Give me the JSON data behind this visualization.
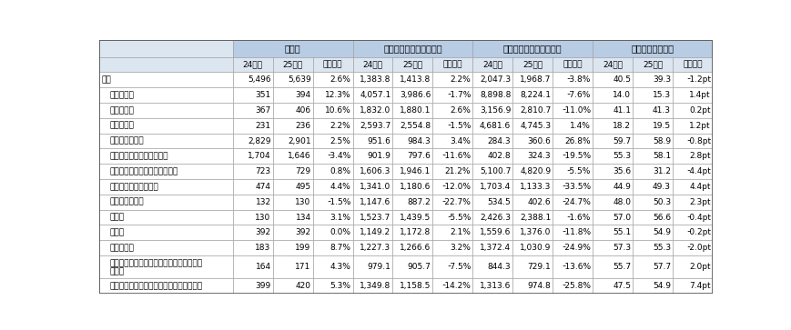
{
  "header_groups": [
    {
      "label": "企業数",
      "cols": 3
    },
    {
      "label": "労働生産性（万円／人）",
      "cols": 3
    },
    {
      "label": "労働装備率（万円／人）",
      "cols": 3
    },
    {
      "label": "労働分配率（％）",
      "cols": 3
    }
  ],
  "sub_headers": [
    "24年度",
    "25年度",
    "前年度比",
    "24年度",
    "25年度",
    "前年度比",
    "24年度",
    "25年度",
    "前年度比",
    "24年度",
    "25年度",
    "前年度差"
  ],
  "rows": [
    {
      "label": "全体",
      "indent": false,
      "multiline": false,
      "values": [
        "5,496",
        "5,639",
        "2.6%",
        "1,383.8",
        "1,413.8",
        "2.2%",
        "2,047.3",
        "1,968.7",
        "╶3.8%",
        "40.5",
        "39.3",
        "╶1.2pt"
      ]
    },
    {
      "label": "電気通信業",
      "indent": true,
      "multiline": false,
      "values": [
        "351",
        "394",
        "12.3%",
        "4,057.1",
        "3,986.6",
        "╶1.7%",
        "8,898.8",
        "8,224.1",
        "╶7.6%",
        "14.0",
        "15.3",
        "1.4pt"
      ]
    },
    {
      "label": "民間放送業",
      "indent": true,
      "multiline": false,
      "values": [
        "367",
        "406",
        "10.6%",
        "1,832.0",
        "1,880.1",
        "2.6%",
        "3,156.9",
        "2,810.7",
        "╶11.0%",
        "41.1",
        "41.3",
        "0.2pt"
      ]
    },
    {
      "label": "有線放送業",
      "indent": true,
      "multiline": false,
      "values": [
        "231",
        "236",
        "2.2%",
        "2,593.7",
        "2,554.8",
        "╶1.5%",
        "4,681.6",
        "4,745.3",
        "1.4%",
        "18.2",
        "19.5",
        "1.2pt"
      ]
    },
    {
      "label": "ソフトウェア業",
      "indent": true,
      "multiline": false,
      "values": [
        "2,829",
        "2,901",
        "2.5%",
        "951.6",
        "984.3",
        "3.4%",
        "284.3",
        "360.6",
        "26.8%",
        "59.7",
        "58.9",
        "╶0.8pt"
      ]
    },
    {
      "label": "情報処理・提供サービス業",
      "indent": true,
      "multiline": false,
      "values": [
        "1,704",
        "1,646",
        "╶3.4%",
        "901.9",
        "797.6",
        "╶11.6%",
        "402.8",
        "324.3",
        "╶19.5%",
        "55.3",
        "58.1",
        "2.8pt"
      ]
    },
    {
      "label": "インターネット附隨サービス業",
      "indent": true,
      "multiline": false,
      "values": [
        "723",
        "729",
        "0.8%",
        "1,606.3",
        "1,946.1",
        "21.2%",
        "5,100.7",
        "4,820.9",
        "╶5.5%",
        "35.6",
        "31.2",
        "╶4.4pt"
      ]
    },
    {
      "label": "映像情報制作・配給業",
      "indent": true,
      "multiline": false,
      "values": [
        "474",
        "495",
        "4.4%",
        "1,341.0",
        "1,180.6",
        "╶12.0%",
        "1,703.4",
        "1,133.3",
        "╶33.5%",
        "44.9",
        "49.3",
        "4.4pt"
      ]
    },
    {
      "label": "音声情報制作業",
      "indent": true,
      "multiline": false,
      "values": [
        "132",
        "130",
        "╶1.5%",
        "1,147.6",
        "887.2",
        "╶22.7%",
        "534.5",
        "402.6",
        "╶24.7%",
        "48.0",
        "50.3",
        "2.3pt"
      ]
    },
    {
      "label": "新聞業",
      "indent": true,
      "multiline": false,
      "values": [
        "130",
        "134",
        "3.1%",
        "1,523.7",
        "1,439.5",
        "╶5.5%",
        "2,426.3",
        "2,388.1",
        "╶1.6%",
        "57.0",
        "56.6",
        "╶0.4pt"
      ]
    },
    {
      "label": "出版業",
      "indent": true,
      "multiline": false,
      "values": [
        "392",
        "392",
        "0.0%",
        "1,149.2",
        "1,172.8",
        "2.1%",
        "1,559.6",
        "1,376.0",
        "╶11.8%",
        "55.1",
        "54.9",
        "╶0.2pt"
      ]
    },
    {
      "label": "広告制作業",
      "indent": true,
      "multiline": false,
      "values": [
        "183",
        "199",
        "8.7%",
        "1,227.3",
        "1,266.6",
        "3.2%",
        "1,372.4",
        "1,030.9",
        "╶24.9%",
        "57.3",
        "55.3",
        "╶2.0pt"
      ]
    },
    {
      "label": "映像・音声・文字情報制作に附帯するサービス業",
      "indent": true,
      "multiline": true,
      "label_line1": "映像・音声・文字情報制作に附帯するサー",
      "label_line2": "ビス業",
      "values": [
        "164",
        "171",
        "4.3%",
        "979.1",
        "905.7",
        "╶7.5%",
        "844.3",
        "729.1",
        "╶13.6%",
        "55.7",
        "57.7",
        "2.0pt"
      ]
    },
    {
      "label": "（再掲）テレビジョン・ラジオ番組制作業",
      "indent": true,
      "multiline": false,
      "values": [
        "399",
        "420",
        "5.3%",
        "1,349.8",
        "1,158.5",
        "╶14.2%",
        "1,313.6",
        "974.8",
        "╶25.8%",
        "47.5",
        "54.9",
        "7.4pt"
      ]
    }
  ],
  "header_bg": "#b8cce4",
  "subheader_bg": "#dce6f1",
  "white": "#ffffff",
  "border_color": "#999999",
  "dark_border": "#555555",
  "text_color": "#000000",
  "group_fs": 7.0,
  "sub_fs": 6.5,
  "cell_fs": 6.5,
  "label_fs": 6.5
}
